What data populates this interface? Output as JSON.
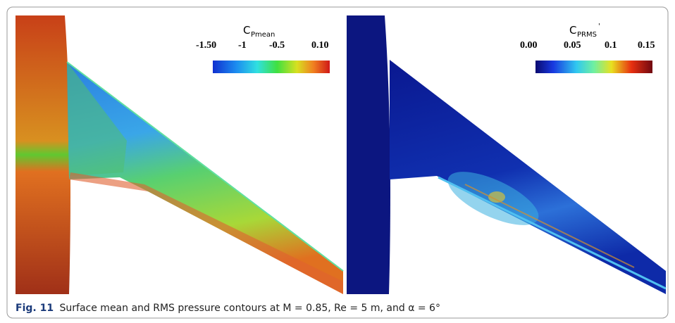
{
  "figure": {
    "panels": [
      {
        "colorbar": {
          "symbol": "C",
          "subscript": "Pmean",
          "ticks": [
            "-1.50",
            "-1",
            "-0.5",
            "0.10"
          ]
        }
      },
      {
        "colorbar": {
          "symbol": "C",
          "subscript": "PRMS",
          "superscript": "'",
          "ticks": [
            "0.00",
            "0.05",
            "0.1",
            "0.15"
          ]
        }
      }
    ],
    "caption": {
      "label": "Fig. 11",
      "text": "Surface mean and RMS pressure contours at M = 0.85, Re = 5 m, and α = 6°"
    }
  }
}
